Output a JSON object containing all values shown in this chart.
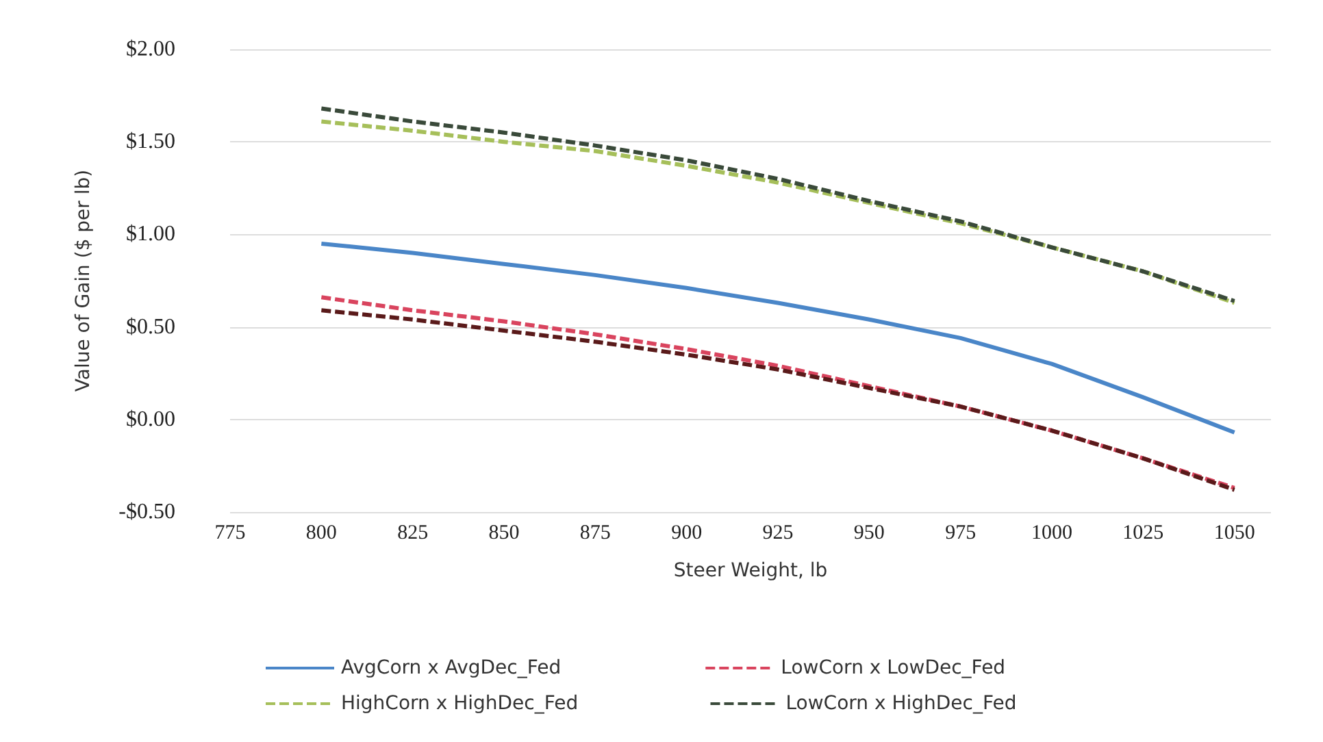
{
  "chart_data": {
    "type": "line",
    "xlabel": "Steer Weight, lb",
    "ylabel": "Value of Gain ($ per lb)",
    "x": [
      800,
      825,
      850,
      875,
      900,
      925,
      950,
      975,
      1000,
      1025,
      1050
    ],
    "series": [
      {
        "name": "AvgCorn x AvgDec_Fed",
        "color": "#4a86c8",
        "line_style": "solid",
        "values": [
          0.95,
          0.9,
          0.84,
          0.78,
          0.71,
          0.63,
          0.54,
          0.44,
          0.3,
          0.12,
          -0.07
        ]
      },
      {
        "name": "LowCorn x LowDec_Fed",
        "color": "#d9445e",
        "line_style": "dashed",
        "values": [
          0.66,
          0.59,
          0.53,
          0.46,
          0.38,
          0.29,
          0.18,
          0.07,
          -0.06,
          -0.21,
          -0.37
        ]
      },
      {
        "name": "HighCorn x HighDec_Fed",
        "color": "#a6bf5a",
        "line_style": "dashed",
        "values": [
          1.61,
          1.56,
          1.5,
          1.45,
          1.37,
          1.28,
          1.17,
          1.06,
          0.93,
          0.8,
          0.63
        ]
      },
      {
        "name": "LowCorn x HighDec_Fed",
        "color": "#3a4a3a",
        "line_style": "dashed",
        "values": [
          1.68,
          1.61,
          1.55,
          1.48,
          1.4,
          1.3,
          1.18,
          1.07,
          0.93,
          0.8,
          0.64
        ]
      },
      {
        "name": null,
        "color": "#5a1a1a",
        "line_style": "dashed",
        "values": [
          0.59,
          0.54,
          0.48,
          0.42,
          0.35,
          0.27,
          0.17,
          0.07,
          -0.06,
          -0.21,
          -0.38
        ]
      }
    ],
    "xlim": [
      775,
      1060
    ],
    "xticks": [
      775,
      800,
      825,
      850,
      875,
      900,
      925,
      950,
      975,
      1000,
      1025,
      1050
    ],
    "ylim": [
      -0.5,
      2
    ],
    "yticks": [
      {
        "value": -0.5,
        "label": "-$0.50"
      },
      {
        "value": 0,
        "label": "$0.00"
      },
      {
        "value": 0.5,
        "label": "$0.50"
      },
      {
        "value": 1,
        "label": "$1.00"
      },
      {
        "value": 1.5,
        "label": "$1.50"
      },
      {
        "value": 2,
        "label": "$2.00"
      }
    ],
    "grid": "y",
    "legend": "bottom",
    "marker": "none"
  }
}
